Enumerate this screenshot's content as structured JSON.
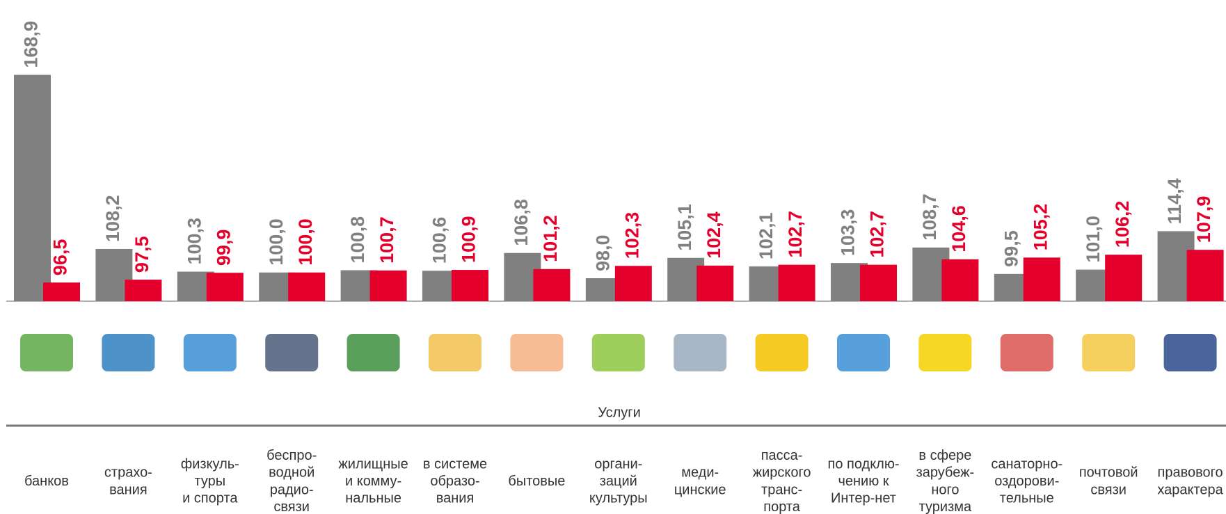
{
  "chart_data": {
    "type": "bar",
    "x_label": "Услуги",
    "categories": [
      "банков",
      "страхо-\nвания",
      "физкуль-\nтуры\nи спорта",
      "беспро-\nводной\nрадио-\nсвязи",
      "жилищные\nи комму-\nнальные",
      "в системе\nобразо-\nвания",
      "бытовые",
      "органи-\nзаций\nкультуры",
      "меди-\nцинские",
      "пасса-\nжирского\nтранс-\nпорта",
      "по подклю-\nчению к\nИнтер-нет",
      "в сфере\nзарубеж-\nного\nтуризма",
      "санаторно-\nоздорови-\nтельные",
      "почтовой\nсвязи",
      "правового\nхарактера"
    ],
    "series": [
      {
        "color": "#808080",
        "values": [
          168.9,
          108.2,
          100.3,
          100.0,
          100.8,
          100.6,
          106.8,
          98.0,
          105.1,
          102.1,
          103.3,
          108.7,
          99.5,
          101.0,
          114.4
        ],
        "value_labels": [
          "168,9",
          "108,2",
          "100,3",
          "100,0",
          "100,8",
          "100,6",
          "106,8",
          "98,0",
          "105,1",
          "102,1",
          "103,3",
          "108,7",
          "99,5",
          "101,0",
          "114,4"
        ]
      },
      {
        "color": "#e4002b",
        "values": [
          96.5,
          97.5,
          99.9,
          100.0,
          100.7,
          100.9,
          101.2,
          102.3,
          102.4,
          102.7,
          102.7,
          104.6,
          105.2,
          106.2,
          107.9
        ],
        "value_labels": [
          "96,5",
          "97,5",
          "99,9",
          "100,0",
          "100,7",
          "100,9",
          "101,2",
          "102,3",
          "102,4",
          "102,7",
          "102,7",
          "104,6",
          "105,2",
          "106,2",
          "107,9"
        ]
      }
    ],
    "ylim": [
      90,
      195
    ]
  }
}
